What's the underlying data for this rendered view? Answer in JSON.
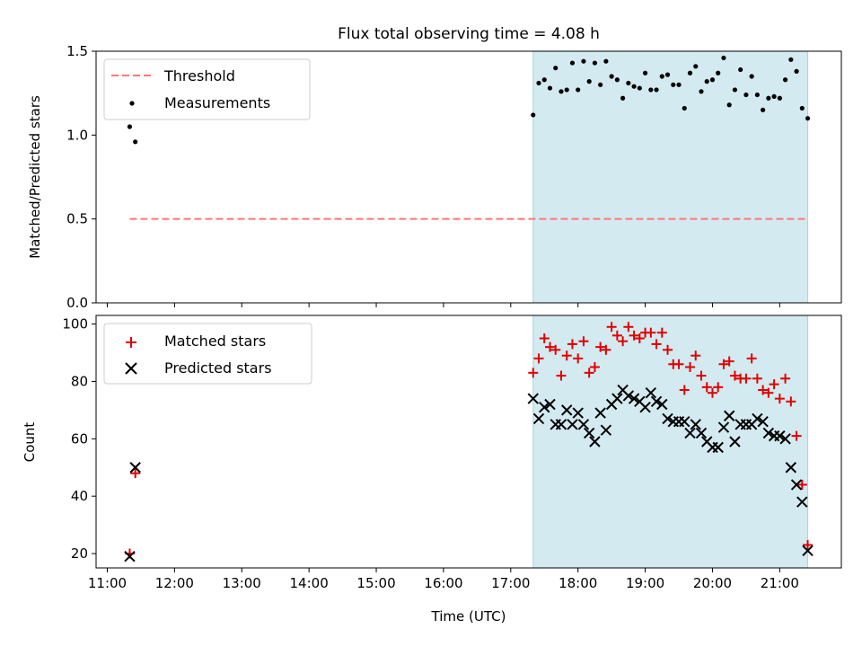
{
  "title": "Flux total observing time = 4.08 h",
  "colors": {
    "threshold": "#ff7777",
    "measurements": "#000000",
    "matched": "#e00000",
    "predicted": "#000000",
    "shade": "#d3eaf0",
    "shade_edge": "#a9d3df"
  },
  "chart_data": [
    {
      "type": "scatter",
      "ylabel": "Matched/Predicted stars",
      "ylim": [
        0,
        1.5
      ],
      "yticks": [
        0,
        0.5,
        1.0,
        1.5
      ],
      "ytick_labels": [
        "0.0",
        "0.5",
        "1.0",
        "1.5"
      ],
      "xlim": [
        "10:50",
        "21:55"
      ],
      "shaded_span": [
        "17:20",
        "21:25"
      ],
      "legend_position": "upper-left",
      "series": [
        {
          "name": "Threshold",
          "kind": "dashed-line",
          "x": [
            "11:20",
            "21:25"
          ],
          "y": [
            0.5,
            0.5
          ]
        },
        {
          "name": "Measurements",
          "kind": "dots",
          "x": [
            "11:20",
            "11:25",
            "17:20",
            "17:25",
            "17:30",
            "17:35",
            "17:40",
            "17:45",
            "17:50",
            "17:55",
            "18:00",
            "18:05",
            "18:10",
            "18:15",
            "18:20",
            "18:25",
            "18:30",
            "18:35",
            "18:40",
            "18:45",
            "18:50",
            "18:55",
            "19:00",
            "19:05",
            "19:10",
            "19:15",
            "19:20",
            "19:25",
            "19:30",
            "19:35",
            "19:40",
            "19:45",
            "19:50",
            "19:55",
            "20:00",
            "20:05",
            "20:10",
            "20:15",
            "20:20",
            "20:25",
            "20:30",
            "20:35",
            "20:40",
            "20:45",
            "20:50",
            "20:55",
            "21:00",
            "21:05",
            "21:10",
            "21:15",
            "21:20",
            "21:25"
          ],
          "y": [
            1.05,
            0.96,
            1.12,
            1.31,
            1.33,
            1.28,
            1.4,
            1.26,
            1.27,
            1.43,
            1.27,
            1.44,
            1.32,
            1.43,
            1.3,
            1.44,
            1.35,
            1.33,
            1.22,
            1.31,
            1.29,
            1.28,
            1.37,
            1.27,
            1.27,
            1.35,
            1.36,
            1.3,
            1.3,
            1.16,
            1.37,
            1.41,
            1.26,
            1.32,
            1.33,
            1.37,
            1.46,
            1.18,
            1.27,
            1.39,
            1.24,
            1.35,
            1.24,
            1.15,
            1.22,
            1.23,
            1.22,
            1.33,
            1.45,
            1.38,
            1.16,
            1.1
          ]
        }
      ]
    },
    {
      "type": "scatter",
      "ylabel": "Count",
      "xlabel": "Time (UTC)",
      "ylim": [
        15,
        103
      ],
      "yticks": [
        20,
        40,
        60,
        80,
        100
      ],
      "ytick_labels": [
        "20",
        "40",
        "60",
        "80",
        "100"
      ],
      "xlim": [
        "10:50",
        "21:55"
      ],
      "xticks": [
        "11:00",
        "12:00",
        "13:00",
        "14:00",
        "15:00",
        "16:00",
        "17:00",
        "18:00",
        "19:00",
        "20:00",
        "21:00"
      ],
      "shaded_span": [
        "17:20",
        "21:25"
      ],
      "legend_position": "upper-left",
      "series": [
        {
          "name": "Matched stars",
          "kind": "plus",
          "x": [
            "11:20",
            "11:25",
            "17:20",
            "17:25",
            "17:30",
            "17:35",
            "17:40",
            "17:45",
            "17:50",
            "17:55",
            "18:00",
            "18:05",
            "18:10",
            "18:15",
            "18:20",
            "18:25",
            "18:30",
            "18:35",
            "18:40",
            "18:45",
            "18:50",
            "18:55",
            "19:00",
            "19:05",
            "19:10",
            "19:15",
            "19:20",
            "19:25",
            "19:30",
            "19:35",
            "19:40",
            "19:45",
            "19:50",
            "19:55",
            "20:00",
            "20:05",
            "20:10",
            "20:15",
            "20:20",
            "20:25",
            "20:30",
            "20:35",
            "20:40",
            "20:45",
            "20:50",
            "20:55",
            "21:00",
            "21:05",
            "21:10",
            "21:15",
            "21:20",
            "21:25"
          ],
          "y": [
            20,
            48,
            83,
            88,
            95,
            92,
            91,
            82,
            89,
            93,
            88,
            94,
            83,
            85,
            92,
            91,
            99,
            96,
            94,
            99,
            96,
            95,
            97,
            97,
            93,
            97,
            91,
            86,
            86,
            77,
            85,
            89,
            82,
            78,
            76,
            78,
            86,
            87,
            82,
            81,
            81,
            88,
            81,
            77,
            76,
            79,
            74,
            81,
            73,
            61,
            44,
            23
          ]
        },
        {
          "name": "Predicted stars",
          "kind": "cross",
          "x": [
            "11:20",
            "11:25",
            "17:20",
            "17:25",
            "17:30",
            "17:35",
            "17:40",
            "17:45",
            "17:50",
            "17:55",
            "18:00",
            "18:05",
            "18:10",
            "18:15",
            "18:20",
            "18:25",
            "18:30",
            "18:35",
            "18:40",
            "18:45",
            "18:50",
            "18:55",
            "19:00",
            "19:05",
            "19:10",
            "19:15",
            "19:20",
            "19:25",
            "19:30",
            "19:35",
            "19:40",
            "19:45",
            "19:50",
            "19:55",
            "20:00",
            "20:05",
            "20:10",
            "20:15",
            "20:20",
            "20:25",
            "20:30",
            "20:35",
            "20:40",
            "20:45",
            "20:50",
            "20:55",
            "21:00",
            "21:05",
            "21:10",
            "21:15",
            "21:20",
            "21:25"
          ],
          "y": [
            19,
            50,
            74,
            67,
            71,
            72,
            65,
            65,
            70,
            65,
            69,
            65,
            62,
            59,
            69,
            63,
            72,
            74,
            77,
            75,
            74,
            73,
            71,
            76,
            73,
            72,
            67,
            66,
            66,
            66,
            62,
            65,
            62,
            59,
            57,
            57,
            64,
            68,
            59,
            65,
            65,
            65,
            67,
            66,
            62,
            61,
            61,
            60,
            50,
            44,
            38,
            21
          ]
        }
      ]
    }
  ]
}
